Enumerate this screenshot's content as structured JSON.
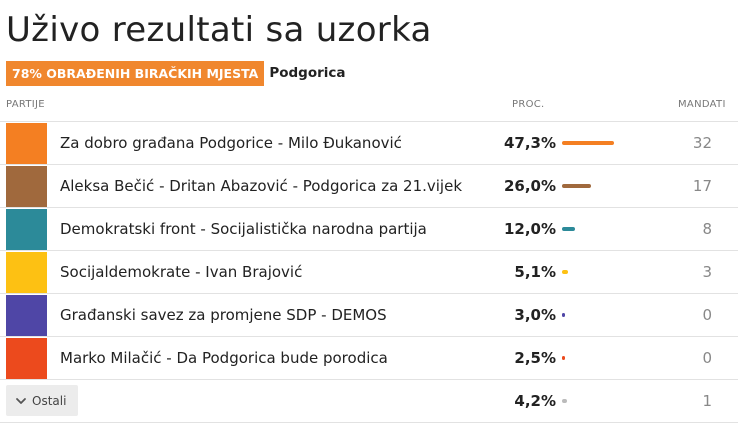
{
  "title": "Uživo rezultati sa uzorka",
  "badge": "78% OBRAĐENIH BIRAČKIH MJESTA",
  "city": "Podgorica",
  "headers": {
    "parties": "PARTIJE",
    "pct": "PROC.",
    "seats": "MANDATI"
  },
  "max_pct": 47.3,
  "rows": [
    {
      "name": "Za dobro građana Podgorice - Milo Đukanović",
      "pct_label": "47,3%",
      "pct": 47.3,
      "seats": "32",
      "color": "#f47f22"
    },
    {
      "name": "Aleksa Bečić - Dritan Abazović - Podgorica za 21.vijek",
      "pct_label": "26,0%",
      "pct": 26.0,
      "seats": "17",
      "color": "#a0693d"
    },
    {
      "name": "Demokratski front - Socijalistička narodna partija",
      "pct_label": "12,0%",
      "pct": 12.0,
      "seats": "8",
      "color": "#2c8a99"
    },
    {
      "name": "Socijaldemokrate - Ivan Brajović",
      "pct_label": "5,1%",
      "pct": 5.1,
      "seats": "3",
      "color": "#fdc113"
    },
    {
      "name": "Građanski savez za promjene SDP - DEMOS",
      "pct_label": "3,0%",
      "pct": 3.0,
      "seats": "0",
      "color": "#4f46a6"
    },
    {
      "name": "Marko Milačić - Da Podgorica bude porodica",
      "pct_label": "2,5%",
      "pct": 2.5,
      "seats": "0",
      "color": "#ec4a1d"
    }
  ],
  "others": {
    "label": "Ostali",
    "icon": "chevron-down-icon",
    "pct_label": "4,2%",
    "pct": 4.2,
    "seats": "1",
    "color": "#bbbbbb"
  }
}
